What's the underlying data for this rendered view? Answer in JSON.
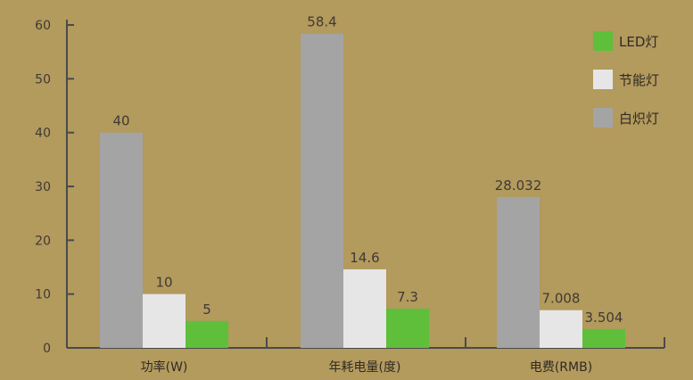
{
  "chart_data": {
    "type": "bar",
    "categories": [
      "功率(W)",
      "年耗电量(度)",
      "电费(RMB)"
    ],
    "series": [
      {
        "name": "白炽灯",
        "values": [
          40,
          58.4,
          28.032
        ],
        "labels": [
          "40",
          "58.4",
          "28.032"
        ],
        "color": "#a4a4a4"
      },
      {
        "name": "节能灯",
        "values": [
          10,
          14.6,
          7.008
        ],
        "labels": [
          "10",
          "14.6",
          "7.008"
        ],
        "color": "#e6e6e6"
      },
      {
        "name": "LED灯",
        "values": [
          5,
          7.3,
          3.504
        ],
        "labels": [
          "5",
          "7.3",
          "3.504"
        ],
        "color": "#5fbf3b"
      }
    ],
    "legend_order": [
      "LED灯",
      "节能灯",
      "白炽灯"
    ],
    "legend_placement": "top-right",
    "ylim": [
      0,
      60
    ],
    "yticks": [
      0,
      10,
      20,
      30,
      40,
      50,
      60
    ],
    "grid": false
  },
  "colors": {
    "background": "#b39a5d",
    "axis": "#4a4a4a"
  }
}
